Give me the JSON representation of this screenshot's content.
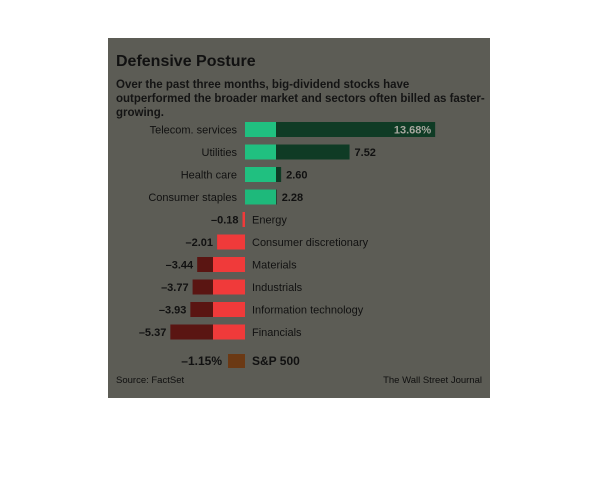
{
  "header": {
    "title": "Defensive Posture",
    "subtitle": "Over the past three months, big-dividend stocks have outperformed the broader market and sectors often billed as faster-growing."
  },
  "footer": {
    "source": "Source: FactSet",
    "publisher": "The Wall Street Journal"
  },
  "colors": {
    "positive": "#0f3b25",
    "negative": "#5a1512",
    "benchmark": "#6b3914",
    "highlight_positive": "#20c080",
    "highlight_negative": "#f03a3a"
  },
  "chart_data": {
    "type": "bar",
    "orientation": "horizontal",
    "categories": [
      "Telecom. services",
      "Utilities",
      "Health care",
      "Consumer staples",
      "Energy",
      "Consumer discretionary",
      "Materials",
      "Industrials",
      "Information technology",
      "Financials"
    ],
    "values": [
      13.68,
      7.52,
      2.6,
      2.28,
      -0.18,
      -2.01,
      -3.44,
      -3.77,
      -3.93,
      -5.37
    ],
    "value_labels": [
      "13.68%",
      "7.52",
      "2.60",
      "2.28",
      "–0.18",
      "–2.01",
      "–3.44",
      "–3.77",
      "–3.93",
      "–5.37"
    ],
    "benchmark": {
      "label": "S&P 500",
      "value": -1.15,
      "value_label": "–1.15%"
    },
    "unit": "%",
    "xlim": [
      -6,
      14
    ]
  }
}
